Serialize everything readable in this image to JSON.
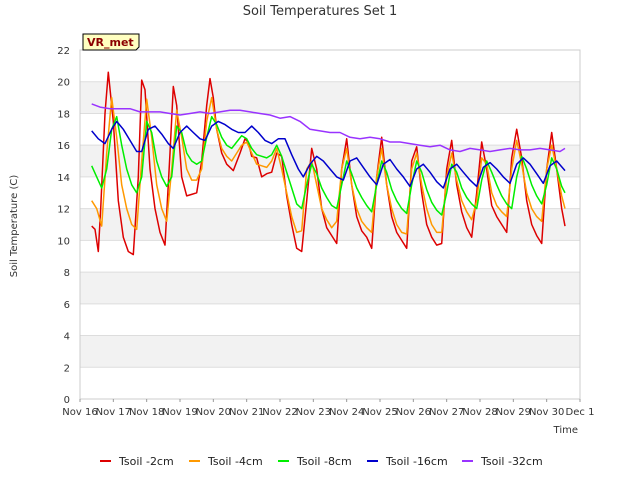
{
  "chart_data": {
    "type": "line",
    "title": "Soil Temperatures Set 1",
    "xlabel": "Time",
    "ylabel": "Soil Temperature (C)",
    "ylim": [
      0,
      22
    ],
    "yticks": [
      0,
      2,
      4,
      6,
      8,
      10,
      12,
      14,
      16,
      18,
      20,
      22
    ],
    "xlim": [
      0,
      15
    ],
    "xtick_labels": [
      "Nov 16",
      "Nov 17",
      "Nov 18",
      "Nov 19",
      "Nov 20",
      "Nov 21",
      "Nov 22",
      "Nov 23",
      "Nov 24",
      "Nov 25",
      "Nov 26",
      "Nov 27",
      "Nov 28",
      "Nov 29",
      "Nov 30",
      "Dec 1"
    ],
    "x_unit": "days since Nov 16",
    "grid": "horizontal bands",
    "legend_position": "bottom",
    "annotation": "VR_met",
    "series": [
      {
        "name": "Tsoil -2cm",
        "color": "#dd0000",
        "x": [
          0.35,
          0.45,
          0.55,
          0.62,
          0.75,
          0.85,
          1.0,
          1.15,
          1.3,
          1.45,
          1.6,
          1.75,
          1.85,
          1.95,
          2.1,
          2.25,
          2.4,
          2.55,
          2.7,
          2.8,
          2.9,
          3.05,
          3.2,
          3.35,
          3.5,
          3.65,
          3.8,
          3.9,
          4.0,
          4.1,
          4.25,
          4.4,
          4.6,
          4.8,
          4.95,
          5.05,
          5.15,
          5.3,
          5.45,
          5.6,
          5.75,
          5.9,
          6.05,
          6.2,
          6.35,
          6.5,
          6.65,
          6.8,
          6.95,
          7.1,
          7.25,
          7.4,
          7.55,
          7.7,
          7.85,
          8.0,
          8.15,
          8.3,
          8.45,
          8.6,
          8.75,
          8.9,
          9.05,
          9.2,
          9.35,
          9.5,
          9.65,
          9.8,
          9.95,
          10.1,
          10.25,
          10.4,
          10.55,
          10.7,
          10.85,
          11.0,
          11.15,
          11.3,
          11.45,
          11.6,
          11.75,
          11.9,
          12.05,
          12.2,
          12.35,
          12.5,
          12.65,
          12.8,
          12.95,
          13.1,
          13.25,
          13.4,
          13.55,
          13.7,
          13.85,
          14.0,
          14.15,
          14.3,
          14.45,
          14.55
        ],
        "y": [
          10.9,
          10.7,
          9.3,
          12.0,
          18.0,
          20.6,
          17.5,
          12.5,
          10.2,
          9.3,
          9.1,
          14.0,
          20.1,
          19.5,
          14.5,
          12.0,
          10.5,
          9.7,
          15.5,
          19.7,
          18.5,
          14.0,
          12.8,
          12.9,
          13.0,
          15.0,
          18.5,
          20.2,
          19.0,
          17.0,
          15.5,
          14.8,
          14.4,
          15.5,
          16.4,
          16.2,
          15.3,
          15.2,
          14.0,
          14.2,
          14.3,
          15.5,
          15.3,
          12.8,
          11.0,
          9.5,
          9.3,
          12.5,
          15.8,
          14.5,
          12.0,
          10.8,
          10.3,
          9.8,
          14.5,
          16.4,
          13.5,
          11.5,
          10.6,
          10.2,
          9.5,
          14.0,
          16.5,
          13.5,
          11.5,
          10.5,
          10.0,
          9.5,
          15.0,
          15.9,
          13.0,
          11.0,
          10.2,
          9.7,
          9.8,
          14.5,
          16.3,
          13.5,
          11.8,
          10.8,
          10.2,
          13.0,
          16.2,
          14.5,
          12.2,
          11.5,
          11.0,
          10.5,
          15.2,
          17.0,
          15.2,
          12.5,
          11.0,
          10.3,
          9.8,
          14.5,
          16.8,
          14.5,
          12.0,
          10.9
        ]
      },
      {
        "name": "Tsoil -4cm",
        "color": "#ff9900",
        "x": [
          0.35,
          0.5,
          0.65,
          0.8,
          0.95,
          1.1,
          1.25,
          1.4,
          1.55,
          1.7,
          1.85,
          2.0,
          2.15,
          2.3,
          2.45,
          2.6,
          2.75,
          2.9,
          3.05,
          3.2,
          3.35,
          3.5,
          3.65,
          3.8,
          3.95,
          4.1,
          4.25,
          4.4,
          4.55,
          4.7,
          4.85,
          5.0,
          5.15,
          5.3,
          5.45,
          5.6,
          5.75,
          5.9,
          6.05,
          6.2,
          6.35,
          6.5,
          6.65,
          6.8,
          6.95,
          7.1,
          7.25,
          7.4,
          7.55,
          7.7,
          7.85,
          8.0,
          8.15,
          8.3,
          8.45,
          8.6,
          8.75,
          8.9,
          9.05,
          9.2,
          9.35,
          9.5,
          9.65,
          9.8,
          9.95,
          10.1,
          10.25,
          10.4,
          10.55,
          10.7,
          10.85,
          11.0,
          11.15,
          11.3,
          11.45,
          11.6,
          11.75,
          11.9,
          12.05,
          12.2,
          12.35,
          12.5,
          12.65,
          12.8,
          12.95,
          13.1,
          13.25,
          13.4,
          13.55,
          13.7,
          13.85,
          14.0,
          14.15,
          14.3,
          14.45,
          14.55
        ],
        "y": [
          12.5,
          12.0,
          10.9,
          15.5,
          19.0,
          16.5,
          13.5,
          12.0,
          11.0,
          10.7,
          15.0,
          18.9,
          16.5,
          13.5,
          12.0,
          11.2,
          14.5,
          18.2,
          16.5,
          14.5,
          13.8,
          13.8,
          14.5,
          17.5,
          19.0,
          17.0,
          15.8,
          15.3,
          15.0,
          15.5,
          16.0,
          16.2,
          15.5,
          14.8,
          14.7,
          14.6,
          15.0,
          15.8,
          14.5,
          13.0,
          11.5,
          10.5,
          10.6,
          14.5,
          15.0,
          13.5,
          12.0,
          11.3,
          10.8,
          11.2,
          14.5,
          15.8,
          13.5,
          12.0,
          11.2,
          10.8,
          10.5,
          14.0,
          15.8,
          13.5,
          12.0,
          11.0,
          10.5,
          10.4,
          14.5,
          15.5,
          13.5,
          12.0,
          11.0,
          10.5,
          10.5,
          14.0,
          15.5,
          13.8,
          12.5,
          11.8,
          11.3,
          12.5,
          15.2,
          14.8,
          13.0,
          12.2,
          11.8,
          11.5,
          14.5,
          16.3,
          14.8,
          13.0,
          12.0,
          11.5,
          11.2,
          14.5,
          16.0,
          14.5,
          12.8,
          12.0
        ]
      },
      {
        "name": "Tsoil -8cm",
        "color": "#00ee00",
        "x": [
          0.35,
          0.5,
          0.65,
          0.8,
          0.95,
          1.1,
          1.25,
          1.4,
          1.55,
          1.7,
          1.85,
          2.0,
          2.15,
          2.3,
          2.45,
          2.6,
          2.75,
          2.9,
          3.05,
          3.2,
          3.35,
          3.5,
          3.65,
          3.8,
          3.95,
          4.1,
          4.25,
          4.4,
          4.55,
          4.7,
          4.85,
          5.0,
          5.15,
          5.3,
          5.45,
          5.6,
          5.75,
          5.9,
          6.05,
          6.2,
          6.35,
          6.5,
          6.65,
          6.8,
          6.95,
          7.1,
          7.25,
          7.4,
          7.55,
          7.7,
          7.85,
          8.0,
          8.15,
          8.3,
          8.45,
          8.6,
          8.75,
          8.9,
          9.05,
          9.2,
          9.35,
          9.5,
          9.65,
          9.8,
          9.95,
          10.1,
          10.25,
          10.4,
          10.55,
          10.7,
          10.85,
          11.0,
          11.15,
          11.3,
          11.45,
          11.6,
          11.75,
          11.9,
          12.05,
          12.2,
          12.35,
          12.5,
          12.65,
          12.8,
          12.95,
          13.1,
          13.25,
          13.4,
          13.55,
          13.7,
          13.85,
          14.0,
          14.15,
          14.3,
          14.45,
          14.55
        ],
        "y": [
          14.7,
          14.0,
          13.3,
          14.5,
          17.0,
          17.8,
          16.0,
          14.5,
          13.5,
          13.0,
          14.0,
          17.5,
          16.8,
          15.0,
          14.0,
          13.4,
          14.0,
          17.2,
          16.8,
          15.5,
          15.0,
          14.8,
          15.0,
          16.5,
          17.8,
          17.3,
          16.5,
          16.0,
          15.8,
          16.2,
          16.6,
          16.4,
          15.8,
          15.4,
          15.3,
          15.2,
          15.4,
          16.0,
          15.3,
          14.3,
          13.3,
          12.3,
          12.0,
          13.5,
          14.8,
          14.2,
          13.3,
          12.7,
          12.2,
          12.0,
          13.5,
          15.0,
          14.2,
          13.3,
          12.7,
          12.2,
          11.8,
          13.5,
          15.0,
          14.3,
          13.2,
          12.5,
          12.0,
          11.7,
          13.5,
          15.0,
          14.3,
          13.2,
          12.4,
          11.9,
          11.6,
          13.0,
          14.8,
          14.3,
          13.3,
          12.7,
          12.3,
          12.0,
          13.8,
          15.0,
          14.3,
          13.5,
          12.8,
          12.3,
          12.0,
          14.0,
          15.3,
          14.5,
          13.5,
          12.8,
          12.3,
          13.5,
          15.2,
          14.5,
          13.4,
          13.0
        ]
      },
      {
        "name": "Tsoil -16cm",
        "color": "#0000cc",
        "x": [
          0.35,
          0.55,
          0.75,
          0.95,
          1.1,
          1.3,
          1.5,
          1.7,
          1.85,
          2.05,
          2.25,
          2.45,
          2.65,
          2.8,
          3.0,
          3.2,
          3.4,
          3.6,
          3.75,
          3.95,
          4.15,
          4.35,
          4.55,
          4.75,
          4.95,
          5.15,
          5.35,
          5.55,
          5.75,
          5.95,
          6.15,
          6.35,
          6.55,
          6.7,
          6.9,
          7.1,
          7.3,
          7.5,
          7.7,
          7.9,
          8.1,
          8.3,
          8.5,
          8.7,
          8.9,
          9.1,
          9.3,
          9.5,
          9.7,
          9.9,
          10.1,
          10.3,
          10.5,
          10.7,
          10.9,
          11.1,
          11.3,
          11.5,
          11.7,
          11.9,
          12.1,
          12.3,
          12.5,
          12.7,
          12.9,
          13.1,
          13.3,
          13.5,
          13.7,
          13.9,
          14.1,
          14.3,
          14.55
        ],
        "y": [
          16.9,
          16.4,
          16.1,
          17.0,
          17.5,
          17.0,
          16.3,
          15.6,
          15.6,
          17.0,
          17.2,
          16.7,
          16.1,
          15.8,
          16.8,
          17.2,
          16.8,
          16.4,
          16.3,
          17.2,
          17.5,
          17.3,
          17.0,
          16.8,
          16.8,
          17.2,
          16.8,
          16.3,
          16.1,
          16.4,
          16.4,
          15.4,
          14.5,
          14.0,
          14.8,
          15.3,
          15.0,
          14.5,
          14.0,
          13.8,
          15.0,
          15.2,
          14.6,
          14.0,
          13.5,
          14.8,
          15.1,
          14.5,
          14.0,
          13.4,
          14.5,
          14.8,
          14.3,
          13.7,
          13.3,
          14.5,
          14.8,
          14.3,
          13.8,
          13.4,
          14.6,
          14.9,
          14.5,
          14.0,
          13.6,
          14.8,
          15.2,
          14.8,
          14.2,
          13.6,
          14.7,
          15.0,
          14.4
        ]
      },
      {
        "name": "Tsoil -32cm",
        "color": "#9933ff",
        "x": [
          0.35,
          0.6,
          0.9,
          1.2,
          1.5,
          1.8,
          2.1,
          2.4,
          2.7,
          3.0,
          3.3,
          3.6,
          3.9,
          4.2,
          4.5,
          4.8,
          5.1,
          5.4,
          5.7,
          6.0,
          6.3,
          6.6,
          6.9,
          7.2,
          7.5,
          7.8,
          8.1,
          8.4,
          8.7,
          9.0,
          9.3,
          9.6,
          9.9,
          10.2,
          10.5,
          10.8,
          11.1,
          11.4,
          11.7,
          12.0,
          12.3,
          12.6,
          12.9,
          13.2,
          13.5,
          13.8,
          14.1,
          14.4,
          14.55
        ],
        "y": [
          18.6,
          18.4,
          18.3,
          18.3,
          18.3,
          18.1,
          18.1,
          18.1,
          18.0,
          17.9,
          18.0,
          18.1,
          18.0,
          18.1,
          18.2,
          18.2,
          18.1,
          18.0,
          17.9,
          17.7,
          17.8,
          17.5,
          17.0,
          16.9,
          16.8,
          16.8,
          16.5,
          16.4,
          16.5,
          16.4,
          16.2,
          16.2,
          16.1,
          16.0,
          15.9,
          16.0,
          15.7,
          15.6,
          15.8,
          15.7,
          15.6,
          15.7,
          15.8,
          15.7,
          15.7,
          15.8,
          15.7,
          15.6,
          15.8
        ]
      }
    ]
  }
}
